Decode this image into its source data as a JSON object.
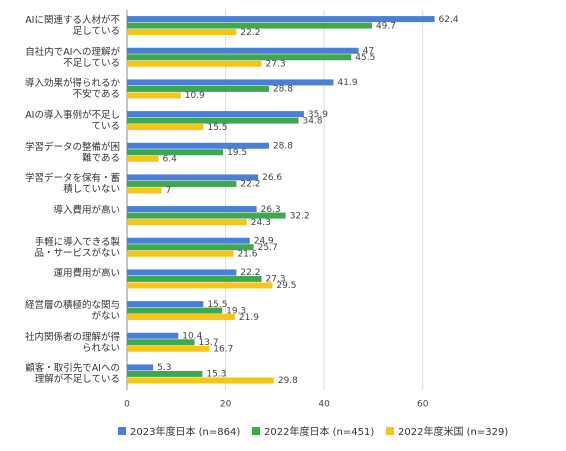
{
  "chart_data": {
    "type": "hbar",
    "categories": [
      "AIに関連する人材が不足している",
      "自社内でAIへの理解が不足している",
      "導入効果が得られるか不安である",
      "AIの導入事例が不足している",
      "学習データの整備が困難である",
      "学習データを保有・蓄積していない",
      "導入費用が高い",
      "手軽に導入できる製品・サービスがない",
      "運用費用が高い",
      "経営層の積極的な関与がない",
      "社内関係者の理解が得られない",
      "顧客・取引先でAIへの理解が不足している"
    ],
    "series": [
      {
        "name": "2023年度日本 (n=864)",
        "color": "#4a7fd6",
        "values": [
          62.4,
          47,
          41.9,
          35.9,
          28.8,
          26.6,
          26.3,
          24.9,
          22.2,
          15.5,
          10.4,
          5.3
        ]
      },
      {
        "name": "2022年度日本 (n=451)",
        "color": "#3ea84e",
        "values": [
          49.7,
          45.5,
          28.8,
          34.8,
          19.5,
          22.2,
          32.2,
          25.7,
          27.3,
          19.3,
          13.7,
          15.3
        ]
      },
      {
        "name": "2022年度米国 (n=329)",
        "color": "#f5c518",
        "values": [
          22.2,
          27.3,
          10.9,
          15.5,
          6.4,
          7,
          24.3,
          21.6,
          29.5,
          21.9,
          16.7,
          29.8
        ]
      }
    ],
    "xlim": [
      0,
      70
    ],
    "xticks": [
      0,
      20,
      40,
      60
    ],
    "grid": true,
    "legend": "bottom"
  }
}
